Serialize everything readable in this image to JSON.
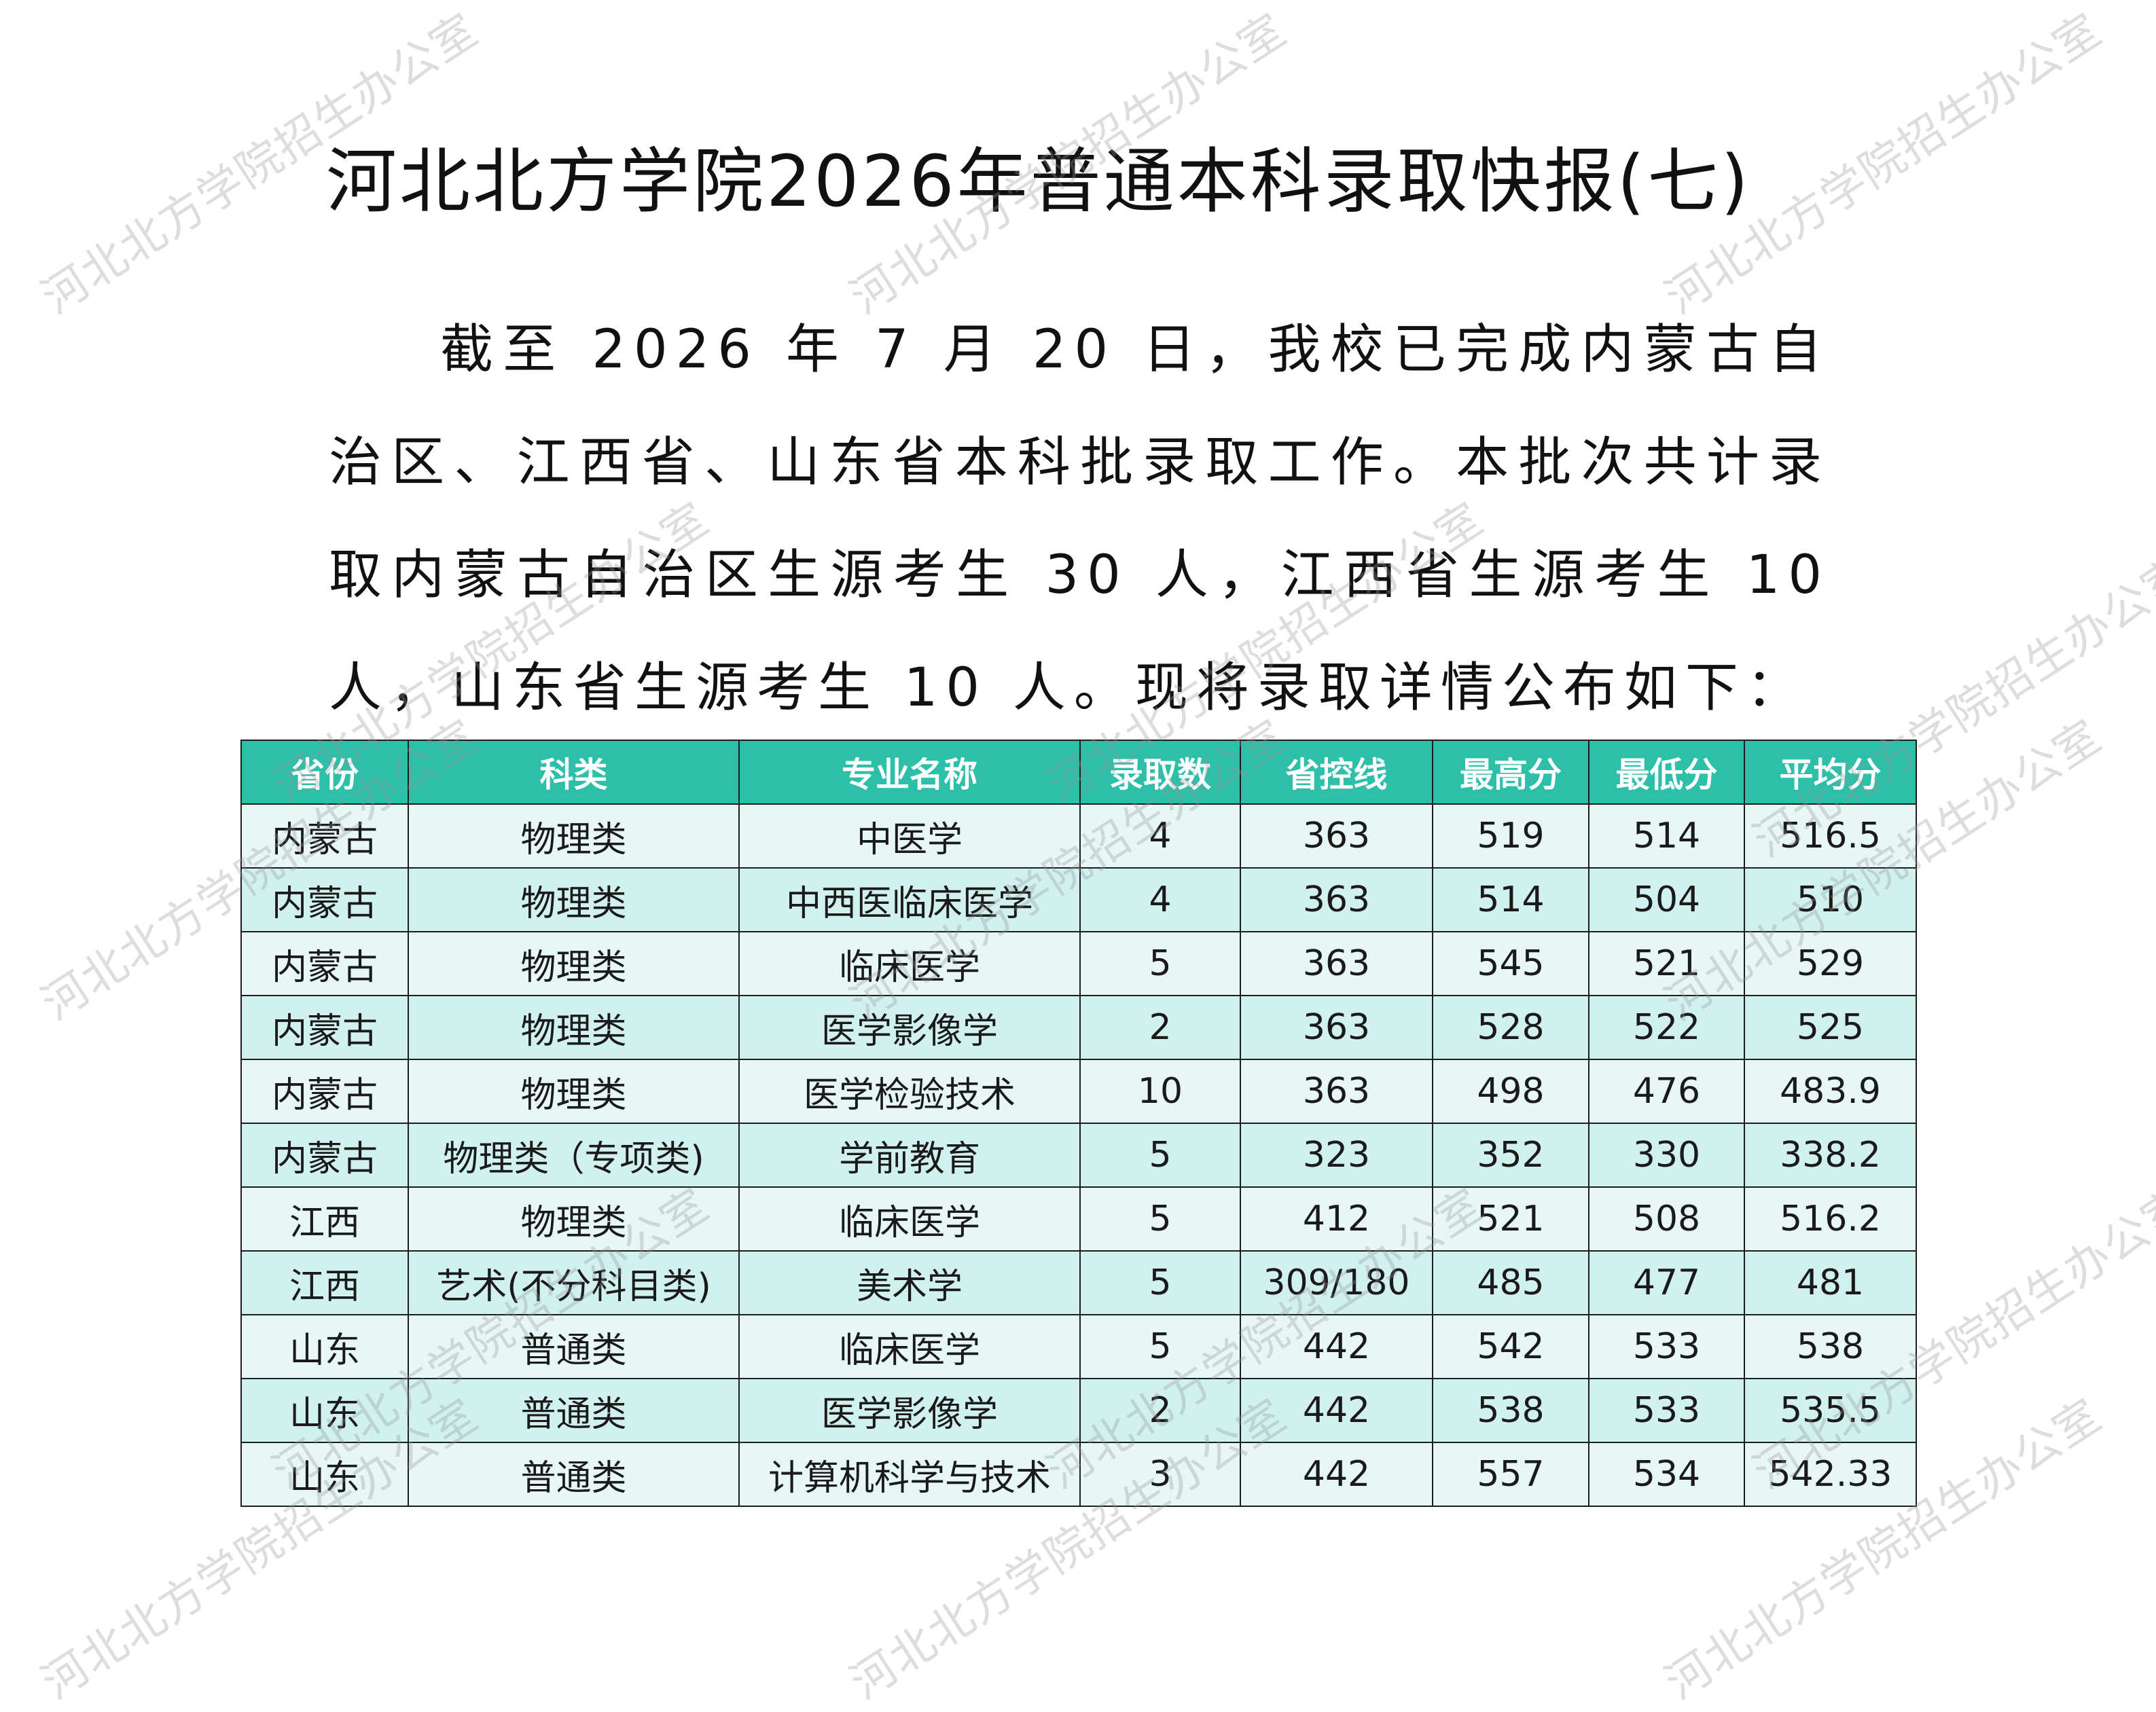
{
  "title": "河北北方学院2026年普通本科录取快报(七)",
  "intro": "截至 2026 年 7 月 20 日，我校已完成内蒙古自治区、江西省、山东省本科批录取工作。本批次共计录取内蒙古自治区生源考生 30 人，江西省生源考生 10 人，山东省生源考生 10 人。现将录取详情公布如下：",
  "table": {
    "headers": [
      "省份",
      "科类",
      "专业名称",
      "录取数",
      "省控线",
      "最高分",
      "最低分",
      "平均分"
    ],
    "rows": [
      [
        "内蒙古",
        "物理类",
        "中医学",
        "4",
        "363",
        "519",
        "514",
        "516.5"
      ],
      [
        "内蒙古",
        "物理类",
        "中西医临床医学",
        "4",
        "363",
        "514",
        "504",
        "510"
      ],
      [
        "内蒙古",
        "物理类",
        "临床医学",
        "5",
        "363",
        "545",
        "521",
        "529"
      ],
      [
        "内蒙古",
        "物理类",
        "医学影像学",
        "2",
        "363",
        "528",
        "522",
        "525"
      ],
      [
        "内蒙古",
        "物理类",
        "医学检验技术",
        "10",
        "363",
        "498",
        "476",
        "483.9"
      ],
      [
        "内蒙古",
        "物理类（专项类)",
        "学前教育",
        "5",
        "323",
        "352",
        "330",
        "338.2"
      ],
      [
        "江西",
        "物理类",
        "临床医学",
        "5",
        "412",
        "521",
        "508",
        "516.2"
      ],
      [
        "江西",
        "艺术(不分科目类)",
        "美术学",
        "5",
        "309/180",
        "485",
        "477",
        "481"
      ],
      [
        "山东",
        "普通类",
        "临床医学",
        "5",
        "442",
        "542",
        "533",
        "538"
      ],
      [
        "山东",
        "普通类",
        "医学影像学",
        "2",
        "442",
        "538",
        "533",
        "535.5"
      ],
      [
        "山东",
        "普通类",
        "计算机科学与技术",
        "3",
        "442",
        "557",
        "534",
        "542.33"
      ]
    ]
  },
  "watermark": "河北北方学院招生办公室"
}
